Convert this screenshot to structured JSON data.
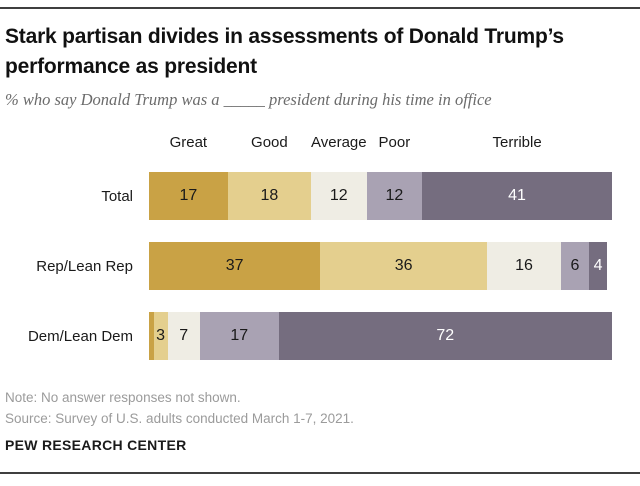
{
  "header": {
    "title": "Stark partisan divides in assessments of Donald Trump’s performance as president",
    "subtitle": "% who say Donald Trump was a _____ president during his time in office"
  },
  "chart_data": {
    "type": "bar",
    "orientation": "horizontal",
    "stacked": true,
    "unit": "percent",
    "categories": [
      "Great",
      "Good",
      "Average",
      "Poor",
      "Terrible"
    ],
    "series": [
      {
        "name": "Total",
        "values": [
          17,
          18,
          12,
          12,
          41
        ]
      },
      {
        "name": "Rep/Lean Rep",
        "values": [
          37,
          36,
          16,
          6,
          4
        ]
      },
      {
        "name": "Dem/Lean Dem",
        "values": [
          1,
          3,
          7,
          17,
          72
        ]
      }
    ],
    "value_labels": [
      [
        "17",
        "18",
        "12",
        "12",
        "41"
      ],
      [
        "37",
        "36",
        "16",
        "6",
        "4"
      ],
      [
        null,
        "3",
        "7",
        "17",
        "72"
      ]
    ],
    "segment_colors": {
      "Great": "#c9a245",
      "Good": "#e4cf8e",
      "Average": "#efede4",
      "Poor": "#a9a2b3",
      "Terrible": "#756d7f"
    },
    "value_text_dark": "#1a1a1a",
    "value_text_light": "#ffffff",
    "axis_range": [
      0,
      100
    ],
    "grid": false,
    "legend_position": "top-as-column-headers"
  },
  "footer": {
    "note": "Note: No answer responses not shown.",
    "source": "Source: Survey of U.S. adults conducted March 1-7, 2021.",
    "brand": "PEW RESEARCH CENTER"
  }
}
